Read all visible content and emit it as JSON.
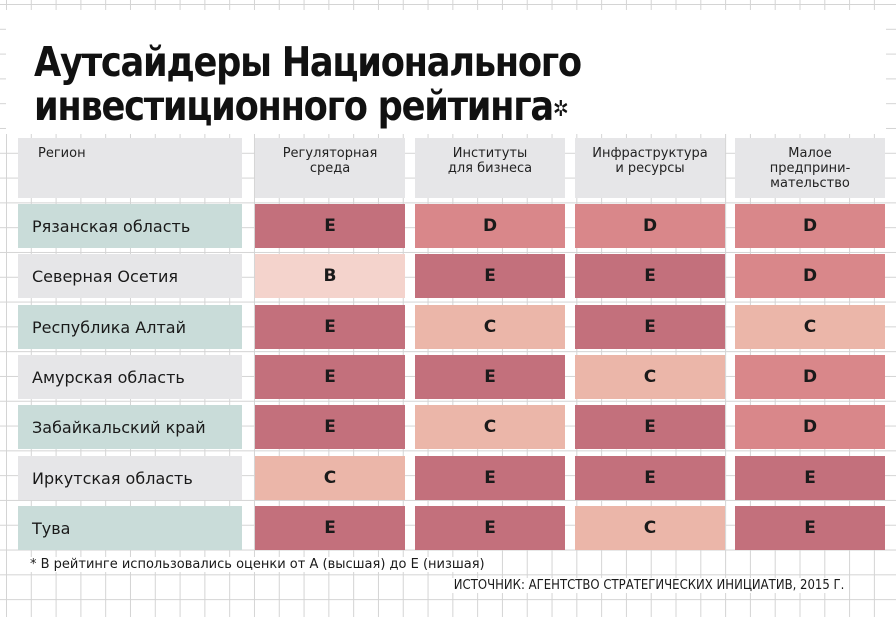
{
  "title_line1": "Аутсайдеры Национального",
  "title_line2": "инвестиционного рейтинга",
  "title_mark": "✲",
  "footnote": "* В рейтинге использовались оценки от А (высшая) до Е (низшая)",
  "source": "ИСТОЧНИК: АГЕНТСТВО СТРАТЕГИЧЕСКИХ ИНИЦИАТИВ, 2015 Г.",
  "colors": {
    "header": "#e6e6e8",
    "region_teal": "#c9dcd9",
    "region_gray": "#e6e6e8",
    "grade_E": "#c3707c",
    "grade_D": "#d9878a",
    "grade_C": "#ebb6a9",
    "grade_B": "#f4d3cc"
  },
  "chart_data": {
    "type": "table",
    "columns": [
      "Регион",
      "Регуляторная\nсреда",
      "Институты\nдля бизнеса",
      "Инфраструктура\nи ресурсы",
      "Малое\nпредприни-\nмательство"
    ],
    "rows": [
      {
        "region": "Рязанская область",
        "grades": [
          "E",
          "D",
          "D",
          "D"
        ]
      },
      {
        "region": "Северная Осетия",
        "grades": [
          "B",
          "E",
          "E",
          "D"
        ]
      },
      {
        "region": "Республика Алтай",
        "grades": [
          "E",
          "C",
          "E",
          "C"
        ]
      },
      {
        "region": "Амурская область",
        "grades": [
          "E",
          "E",
          "C",
          "D"
        ]
      },
      {
        "region": "Забайкальский край",
        "grades": [
          "E",
          "C",
          "E",
          "D"
        ]
      },
      {
        "region": "Иркутская область",
        "grades": [
          "C",
          "E",
          "E",
          "E"
        ]
      },
      {
        "region": "Тува",
        "grades": [
          "E",
          "E",
          "C",
          "E"
        ]
      }
    ]
  }
}
